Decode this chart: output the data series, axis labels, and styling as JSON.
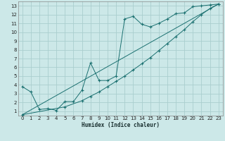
{
  "xlabel": "Humidex (Indice chaleur)",
  "bg_color": "#cce8e8",
  "grid_color": "#aacece",
  "line_color": "#1a7070",
  "xlim": [
    -0.5,
    23.5
  ],
  "ylim": [
    0.5,
    13.5
  ],
  "xticks": [
    0,
    1,
    2,
    3,
    4,
    5,
    6,
    7,
    8,
    9,
    10,
    11,
    12,
    13,
    14,
    15,
    16,
    17,
    18,
    19,
    20,
    21,
    22,
    23
  ],
  "yticks": [
    1,
    2,
    3,
    4,
    5,
    6,
    7,
    8,
    9,
    10,
    11,
    12,
    13
  ],
  "line1_x": [
    0,
    1,
    2,
    3,
    4,
    5,
    6,
    7,
    8,
    9,
    10,
    11,
    12,
    13,
    14,
    15,
    16,
    17,
    18,
    19,
    20,
    21,
    22,
    23
  ],
  "line1_y": [
    3.8,
    3.2,
    1.2,
    1.3,
    1.1,
    2.1,
    2.1,
    3.4,
    6.5,
    4.5,
    4.5,
    5.0,
    11.5,
    11.8,
    10.9,
    10.6,
    11.0,
    11.5,
    12.1,
    12.2,
    12.9,
    13.0,
    13.1,
    13.2
  ],
  "line2_x": [
    0,
    5,
    7,
    8,
    9,
    10,
    11,
    12,
    13,
    14,
    15,
    16,
    17,
    18,
    19,
    20,
    21,
    22,
    23
  ],
  "line2_y": [
    0.6,
    1.5,
    2.2,
    2.7,
    3.2,
    3.8,
    4.4,
    5.0,
    5.7,
    6.4,
    7.1,
    7.9,
    8.7,
    9.5,
    10.3,
    11.2,
    12.0,
    12.7,
    13.2
  ],
  "line3_x": [
    0,
    23
  ],
  "line3_y": [
    0.6,
    13.2
  ]
}
